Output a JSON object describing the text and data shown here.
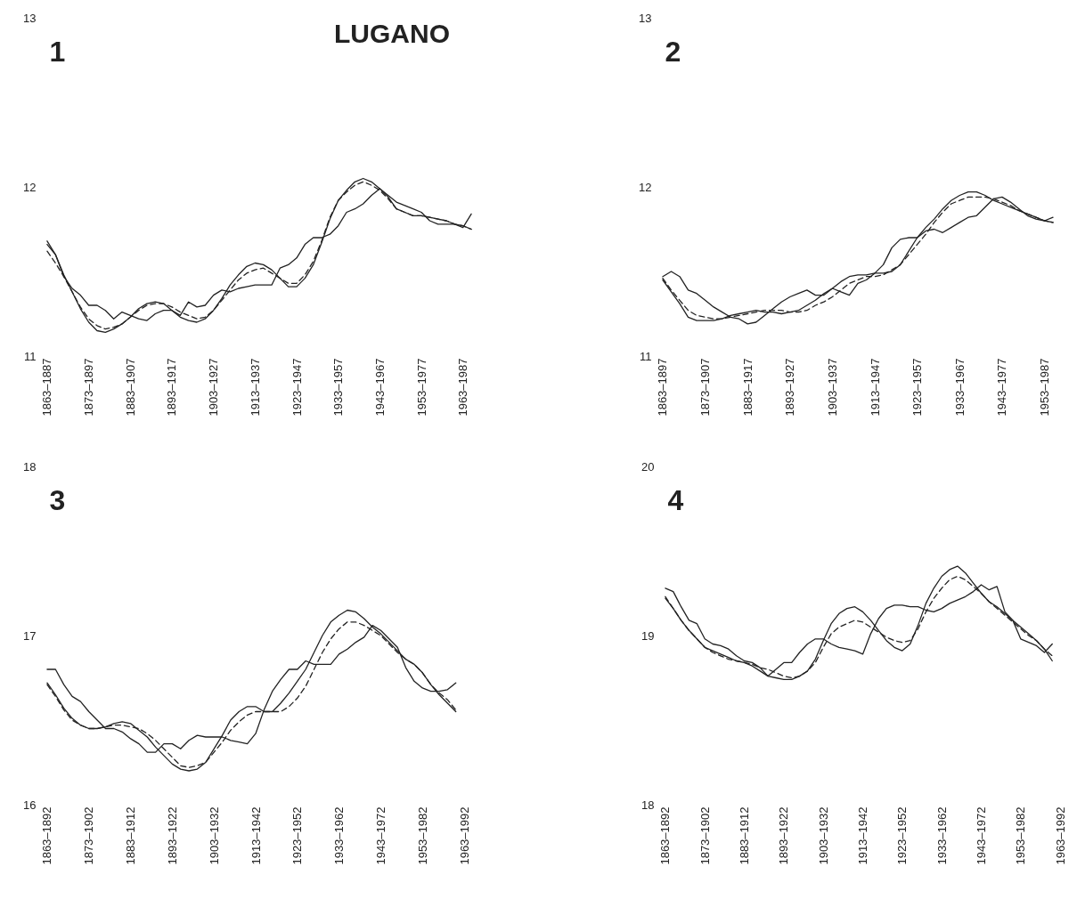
{
  "chart_data": [
    {
      "type": "line",
      "title": "1",
      "annotations": [
        "LUGANO"
      ],
      "ylim": [
        11,
        13
      ],
      "yticks": [
        11,
        12,
        13
      ],
      "categories": [
        "1863–1887",
        null,
        null,
        null,
        null,
        "1873–1897",
        null,
        null,
        null,
        null,
        "1883–1907",
        null,
        null,
        null,
        null,
        "1893–1917",
        null,
        null,
        null,
        null,
        "1903–1927",
        null,
        null,
        null,
        null,
        "1913–1937",
        null,
        null,
        null,
        null,
        "1923–1947",
        null,
        null,
        null,
        null,
        "1933–1957",
        null,
        null,
        null,
        null,
        "1943–1967",
        null,
        null,
        null,
        null,
        "1953–1977",
        null,
        null,
        null,
        null,
        "1963–1987",
        null
      ],
      "series": [
        {
          "color": "#222222",
          "line_style": "solid",
          "values": [
            11.66,
            11.6,
            11.48,
            11.38,
            11.28,
            11.2,
            11.15,
            11.14,
            11.16,
            11.19,
            11.23,
            11.28,
            11.31,
            11.32,
            11.31,
            11.27,
            11.23,
            11.21,
            11.2,
            11.22,
            11.27,
            11.34,
            11.42,
            11.48,
            11.53,
            11.55,
            11.54,
            11.51,
            11.46,
            11.41,
            11.41,
            11.46,
            11.54,
            11.67,
            11.81,
            11.92,
            11.98,
            12.03,
            12.05,
            12.03,
            11.99,
            11.94,
            11.87,
            11.85,
            11.83,
            11.83,
            11.82,
            11.81,
            11.8,
            11.78,
            11.77,
            11.75
          ]
        },
        {
          "color": "#222222",
          "line_style": "solid",
          "values": [
            11.68,
            11.6,
            11.47,
            11.4,
            11.36,
            11.3,
            11.3,
            11.27,
            11.22,
            11.26,
            11.24,
            11.22,
            11.21,
            11.25,
            11.27,
            11.27,
            11.24,
            11.32,
            11.29,
            11.3,
            11.36,
            11.39,
            11.38,
            11.4,
            11.41,
            11.42,
            11.42,
            11.42,
            11.52,
            11.54,
            11.58,
            11.66,
            11.7,
            11.7,
            11.72,
            11.77,
            11.85,
            11.87,
            11.9,
            11.95,
            11.99,
            11.95,
            11.91,
            11.89,
            11.87,
            11.85,
            11.8,
            11.78,
            11.78,
            11.78,
            11.76,
            11.84
          ]
        },
        {
          "color": "#222222",
          "line_style": "dashed",
          "values": [
            11.62,
            11.55,
            11.47,
            11.38,
            11.29,
            11.22,
            11.18,
            11.16,
            11.17,
            11.19,
            11.23,
            11.27,
            11.3,
            11.31,
            11.31,
            11.29,
            11.26,
            11.24,
            11.22,
            11.23,
            11.27,
            11.33,
            11.39,
            11.45,
            11.49,
            11.51,
            11.52,
            11.49,
            11.46,
            11.43,
            11.43,
            11.48,
            11.56,
            11.68,
            11.82,
            11.92,
            11.97,
            12.01,
            12.03,
            12.01,
            11.98,
            11.93,
            11.87,
            11.85,
            11.83,
            11.83,
            11.82,
            11.81,
            11.8,
            11.78,
            11.77,
            11.75
          ]
        }
      ]
    },
    {
      "type": "line",
      "title": "2",
      "ylim": [
        11,
        13
      ],
      "yticks": [
        11,
        12,
        13
      ],
      "categories": [
        "1863–1897",
        null,
        null,
        null,
        null,
        "1873–1907",
        null,
        null,
        null,
        null,
        "1883–1917",
        null,
        null,
        null,
        null,
        "1893–1927",
        null,
        null,
        null,
        null,
        "1903–1937",
        null,
        null,
        null,
        null,
        "1913–1947",
        null,
        null,
        null,
        null,
        "1923–1957",
        null,
        null,
        null,
        null,
        "1933–1967",
        null,
        null,
        null,
        null,
        "1943–1977",
        null,
        null,
        null,
        null,
        "1953–1987",
        null
      ],
      "series": [
        {
          "color": "#222222",
          "line_style": "solid",
          "values": [
            11.45,
            11.38,
            11.31,
            11.23,
            11.21,
            11.21,
            11.21,
            11.22,
            11.24,
            11.25,
            11.26,
            11.27,
            11.26,
            11.26,
            11.25,
            11.26,
            11.27,
            11.3,
            11.33,
            11.37,
            11.4,
            11.44,
            11.47,
            11.48,
            11.48,
            11.49,
            11.49,
            11.5,
            11.54,
            11.62,
            11.7,
            11.76,
            11.81,
            11.87,
            11.92,
            11.95,
            11.97,
            11.97,
            11.95,
            11.92,
            11.9,
            11.88,
            11.86,
            11.84,
            11.82,
            11.8,
            11.79
          ]
        },
        {
          "color": "#222222",
          "line_style": "solid",
          "values": [
            11.47,
            11.5,
            11.47,
            11.39,
            11.37,
            11.33,
            11.29,
            11.26,
            11.23,
            11.22,
            11.19,
            11.2,
            11.24,
            11.28,
            11.32,
            11.35,
            11.37,
            11.39,
            11.36,
            11.36,
            11.4,
            11.38,
            11.36,
            11.43,
            11.45,
            11.49,
            11.54,
            11.64,
            11.69,
            11.7,
            11.7,
            11.74,
            11.75,
            11.73,
            11.76,
            11.79,
            11.82,
            11.83,
            11.88,
            11.93,
            11.94,
            11.91,
            11.87,
            11.83,
            11.81,
            11.8,
            11.82
          ]
        },
        {
          "color": "#222222",
          "line_style": "dashed",
          "values": [
            11.46,
            11.39,
            11.33,
            11.27,
            11.24,
            11.23,
            11.22,
            11.22,
            11.23,
            11.24,
            11.25,
            11.26,
            11.27,
            11.27,
            11.27,
            11.26,
            11.26,
            11.27,
            11.3,
            11.32,
            11.35,
            11.39,
            11.43,
            11.45,
            11.47,
            11.47,
            11.48,
            11.51,
            11.54,
            11.6,
            11.66,
            11.72,
            11.79,
            11.85,
            11.9,
            11.92,
            11.94,
            11.94,
            11.94,
            11.93,
            11.91,
            11.89,
            11.86,
            11.84,
            11.82,
            11.8,
            11.79
          ]
        }
      ]
    },
    {
      "type": "line",
      "title": "3",
      "ylim": [
        16,
        18
      ],
      "yticks": [
        16,
        17,
        18
      ],
      "categories": [
        "1863–1892",
        null,
        null,
        null,
        null,
        "1873–1902",
        null,
        null,
        null,
        null,
        "1883–1912",
        null,
        null,
        null,
        null,
        "1893–1922",
        null,
        null,
        null,
        null,
        "1903–1932",
        null,
        null,
        null,
        null,
        "1913–1942",
        null,
        null,
        null,
        null,
        "1923–1952",
        null,
        null,
        null,
        null,
        "1933–1962",
        null,
        null,
        null,
        null,
        "1943–1972",
        null,
        null,
        null,
        null,
        "1953–1982",
        null,
        null,
        null,
        null,
        "1963–1992"
      ],
      "series": [
        {
          "color": "#222222",
          "line_style": "solid",
          "values": [
            16.72,
            16.65,
            16.57,
            16.51,
            16.47,
            16.45,
            16.45,
            16.46,
            16.48,
            16.49,
            16.48,
            16.44,
            16.4,
            16.34,
            16.29,
            16.24,
            16.21,
            16.2,
            16.21,
            16.25,
            16.33,
            16.41,
            16.5,
            16.55,
            16.58,
            16.58,
            16.55,
            16.55,
            16.6,
            16.66,
            16.73,
            16.8,
            16.9,
            17.0,
            17.08,
            17.12,
            17.15,
            17.14,
            17.1,
            17.05,
            17.01,
            16.96,
            16.91,
            16.86,
            16.83,
            16.78,
            16.71,
            16.65,
            16.6,
            16.55,
            null
          ]
        },
        {
          "color": "#222222",
          "line_style": "solid",
          "values": [
            16.8,
            16.8,
            16.71,
            16.64,
            16.61,
            16.55,
            16.5,
            16.45,
            16.45,
            16.43,
            16.39,
            16.36,
            16.31,
            16.31,
            16.36,
            16.36,
            16.33,
            16.38,
            16.41,
            16.4,
            16.4,
            16.4,
            16.38,
            16.37,
            16.36,
            16.42,
            16.56,
            16.67,
            16.74,
            16.8,
            16.8,
            16.85,
            16.83,
            16.83,
            16.83,
            16.89,
            16.92,
            16.96,
            16.99,
            17.06,
            17.03,
            16.98,
            16.93,
            16.81,
            16.73,
            16.69,
            16.67,
            16.67,
            16.68,
            16.72,
            null
          ]
        },
        {
          "color": "#222222",
          "line_style": "dashed",
          "values": [
            16.71,
            16.64,
            16.56,
            16.5,
            16.47,
            16.45,
            16.45,
            16.46,
            16.47,
            16.47,
            16.46,
            16.45,
            16.42,
            16.38,
            16.33,
            16.28,
            16.23,
            16.22,
            16.23,
            16.25,
            16.31,
            16.37,
            16.44,
            16.49,
            16.53,
            16.55,
            16.55,
            16.55,
            16.55,
            16.58,
            16.63,
            16.7,
            16.8,
            16.9,
            16.98,
            17.04,
            17.08,
            17.08,
            17.06,
            17.03,
            17.0,
            16.95,
            16.9,
            16.86,
            16.83,
            16.78,
            16.71,
            16.66,
            16.62,
            16.56,
            null
          ]
        }
      ]
    },
    {
      "type": "line",
      "title": "4",
      "ylim": [
        18,
        20
      ],
      "yticks": [
        18,
        19,
        20
      ],
      "categories": [
        "1863–1892",
        null,
        null,
        null,
        null,
        "1873–1902",
        null,
        null,
        null,
        null,
        "1883–1912",
        null,
        null,
        null,
        null,
        "1893–1922",
        null,
        null,
        null,
        null,
        "1903–1932",
        null,
        null,
        null,
        null,
        "1913–1942",
        null,
        null,
        null,
        null,
        "1923–1952",
        null,
        null,
        null,
        null,
        "1933–1962",
        null,
        null,
        null,
        null,
        "1943–1972",
        null,
        null,
        null,
        null,
        "1953–1982",
        null,
        null,
        null,
        null,
        "1963–1992"
      ],
      "series": [
        {
          "color": "#222222",
          "line_style": "solid",
          "values": [
            19.22,
            19.16,
            19.09,
            19.03,
            18.98,
            18.93,
            18.91,
            18.89,
            18.87,
            18.85,
            18.84,
            18.82,
            18.79,
            18.76,
            18.75,
            18.74,
            18.74,
            18.76,
            18.79,
            18.86,
            18.97,
            19.07,
            19.13,
            19.16,
            19.17,
            19.14,
            19.09,
            19.03,
            18.97,
            18.93,
            18.91,
            18.95,
            19.06,
            19.19,
            19.28,
            19.35,
            19.39,
            19.41,
            19.37,
            19.31,
            19.25,
            19.2,
            19.17,
            19.13,
            19.09,
            19.05,
            19.01,
            18.97,
            18.92,
            18.85,
            null
          ]
        },
        {
          "color": "#222222",
          "line_style": "solid",
          "values": [
            19.28,
            19.26,
            19.17,
            19.09,
            19.07,
            18.98,
            18.95,
            18.94,
            18.92,
            18.88,
            18.85,
            18.84,
            18.81,
            18.76,
            18.8,
            18.84,
            18.84,
            18.9,
            18.95,
            18.98,
            18.98,
            18.95,
            18.93,
            18.92,
            18.91,
            18.89,
            19.01,
            19.1,
            19.16,
            19.18,
            19.18,
            19.17,
            19.17,
            19.15,
            19.14,
            19.16,
            19.19,
            19.21,
            19.23,
            19.26,
            19.3,
            19.27,
            19.29,
            19.14,
            19.09,
            18.98,
            18.96,
            18.94,
            18.9,
            18.95,
            null
          ]
        },
        {
          "color": "#222222",
          "line_style": "dashed",
          "values": [
            19.23,
            19.16,
            19.09,
            19.03,
            18.98,
            18.93,
            18.9,
            18.88,
            18.86,
            18.85,
            18.84,
            18.83,
            18.81,
            18.8,
            18.78,
            18.76,
            18.75,
            18.76,
            18.79,
            18.84,
            18.93,
            19.01,
            19.05,
            19.07,
            19.09,
            19.08,
            19.05,
            19.02,
            18.99,
            18.97,
            18.96,
            18.97,
            19.04,
            19.14,
            19.22,
            19.28,
            19.33,
            19.35,
            19.33,
            19.29,
            19.25,
            19.2,
            19.16,
            19.12,
            19.08,
            19.04,
            19.0,
            18.97,
            18.92,
            18.88,
            null
          ]
        }
      ]
    }
  ]
}
